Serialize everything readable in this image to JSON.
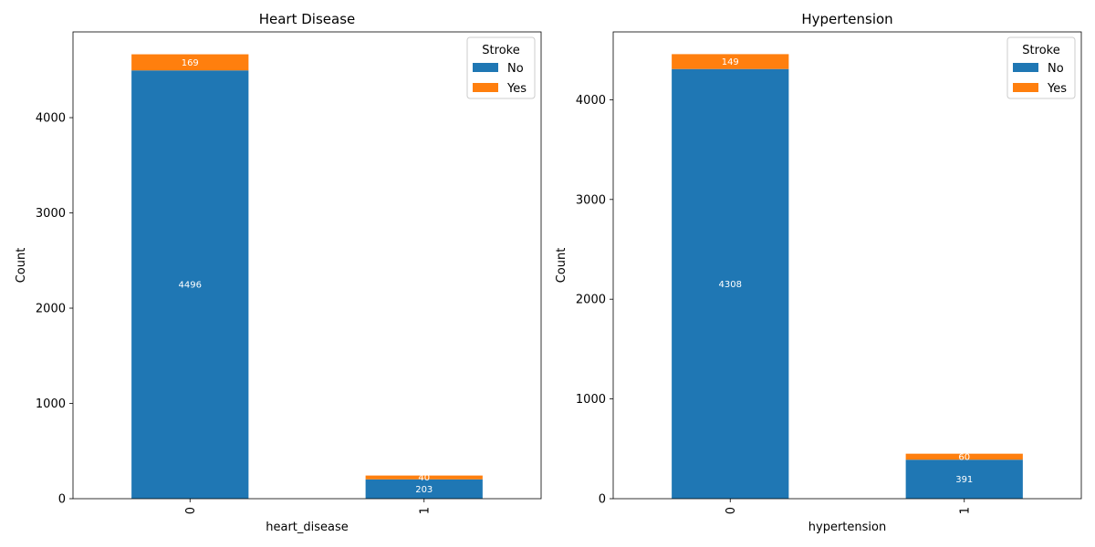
{
  "chart_data": [
    {
      "type": "bar",
      "stacked": true,
      "title": "Heart Disease",
      "xlabel": "heart_disease",
      "ylabel": "Count",
      "categories": [
        "0",
        "1"
      ],
      "series": [
        {
          "name": "No",
          "values": [
            4496,
            203
          ],
          "color": "#1f77b4"
        },
        {
          "name": "Yes",
          "values": [
            169,
            40
          ],
          "color": "#ff7f0e"
        }
      ],
      "ylim": [
        0,
        4900
      ],
      "yticks": [
        0,
        1000,
        2000,
        3000,
        4000
      ],
      "legend": {
        "title": "Stroke",
        "placement": "top-right"
      },
      "grid": false
    },
    {
      "type": "bar",
      "stacked": true,
      "title": "Hypertension",
      "xlabel": "hypertension",
      "ylabel": "Count",
      "categories": [
        "0",
        "1"
      ],
      "series": [
        {
          "name": "No",
          "values": [
            4308,
            391
          ],
          "color": "#1f77b4"
        },
        {
          "name": "Yes",
          "values": [
            149,
            60
          ],
          "color": "#ff7f0e"
        }
      ],
      "ylim": [
        0,
        4680
      ],
      "yticks": [
        0,
        1000,
        2000,
        3000,
        4000
      ],
      "legend": {
        "title": "Stroke",
        "placement": "top-right"
      },
      "grid": false
    }
  ]
}
